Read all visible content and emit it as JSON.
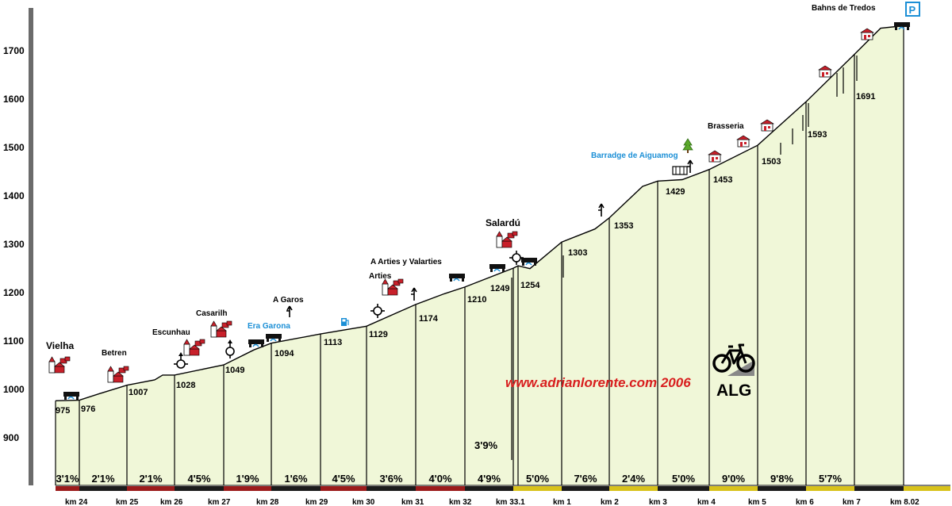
{
  "chart_data": {
    "type": "area",
    "y_ticks": [
      "1700",
      "1600",
      "1500",
      "1400",
      "1300",
      "1200",
      "1100",
      "1000",
      "900"
    ],
    "y_tick_values": [
      1700,
      1600,
      1500,
      1400,
      1300,
      1200,
      1100,
      1000,
      900
    ],
    "ylim": [
      800,
      1800
    ],
    "km_labels": [
      "km 24",
      "km 25",
      "km 26",
      "km 27",
      "km 28",
      "km 29",
      "km 30",
      "km 31",
      "km 32",
      "km 33.1",
      "km 1",
      "km 2",
      "km 3",
      "km 4",
      "km 5",
      "km 6",
      "km 7",
      "km 8.02"
    ],
    "elevation_labels": [
      "975",
      "976",
      "1007",
      "1028",
      "1049",
      "1094",
      "1113",
      "1129",
      "1174",
      "1210",
      "1249",
      "1254",
      "1303",
      "1353",
      "1429",
      "1453",
      "1503",
      "1593",
      "1691"
    ],
    "profile": [
      {
        "label": "975",
        "value": 975
      },
      {
        "label": "976",
        "value": 976
      },
      {
        "label": "1007",
        "value": 1007
      },
      {
        "label": "1028",
        "value": 1028
      },
      {
        "label": "1049",
        "value": 1049
      },
      {
        "label": "1094",
        "value": 1094
      },
      {
        "label": "1113",
        "value": 1113
      },
      {
        "label": "1129",
        "value": 1129
      },
      {
        "label": "1174",
        "value": 1174
      },
      {
        "label": "1210",
        "value": 1210
      },
      {
        "label": "1249",
        "value": 1249
      },
      {
        "label": "1254",
        "value": 1254
      },
      {
        "label": "1303",
        "value": 1303
      },
      {
        "label": "1353",
        "value": 1353
      },
      {
        "label": "1429",
        "value": 1429
      },
      {
        "label": "1453",
        "value": 1453
      },
      {
        "label": "1503",
        "value": 1503
      },
      {
        "label": "1593",
        "value": 1593
      },
      {
        "label": "1691",
        "value": 1691
      },
      {
        "label": "",
        "value": 1750
      }
    ],
    "gradients": [
      "3'1%",
      "2'1%",
      "2'1%",
      "4'5%",
      "1'9%",
      "1'6%",
      "4'5%",
      "3'6%",
      "4'0%",
      "4'9%",
      "5'0%",
      "7'6%",
      "2'4%",
      "5'0%",
      "9'0%",
      "9'8%",
      "5'7%"
    ],
    "gradient_note": "3'9%",
    "segment_colors": [
      "#9b1b1b",
      "#1b1b1b",
      "#9b1b1b",
      "#1b1b1b",
      "#9b1b1b",
      "#1b1b1b",
      "#9b1b1b",
      "#1b1b1b",
      "#9b1b1b",
      "#1b1b1b",
      "#d8c21a",
      "#1b1b1b",
      "#d8c21a",
      "#1b1b1b",
      "#d8c21a",
      "#1b1b1b",
      "#d8c21a",
      "#1b1b1b",
      "#d8c21a"
    ],
    "fill_color": "#f0f7d8",
    "grid": false
  },
  "places": {
    "vielha": "Vielha",
    "betren": "Betren",
    "escunhau": "Escunhau",
    "casarilh": "Casarilh",
    "era_garona": "Era Garona",
    "a_garos": "A Garos",
    "arties": "Arties",
    "a_arties": "A Arties  y Valarties",
    "salardu": "Salardú",
    "barradge": "Barradge de Aiguamog",
    "brasseria": "Brasseria",
    "bahns": "Bahns de Tredos",
    "parking": "P"
  },
  "watermark": "www.adrianlorente.com 2006",
  "logo_text": "ALG",
  "icons": {
    "house": "house-icon",
    "bridge": "bridge-icon",
    "roundabout": "roundabout-icon",
    "junction": "junction-arrow-icon",
    "fuel": "fuel-pump-icon",
    "tree": "tree-icon",
    "parking": "parking-icon",
    "bicycle": "bicycle-icon"
  },
  "colors": {
    "blue_label": "#1b8fd6",
    "watermark": "#d81e1e",
    "icon_house": "#c8202a"
  }
}
